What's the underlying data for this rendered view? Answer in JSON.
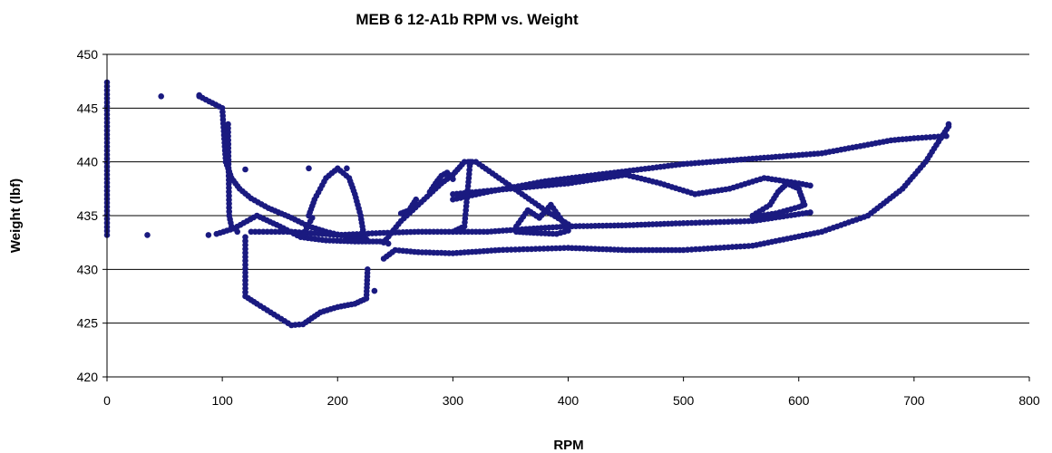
{
  "chart_data": {
    "type": "scatter",
    "title": "MEB 6 12-A1b RPM vs. Weight",
    "xlabel": "RPM",
    "ylabel": "Weight (lbf)",
    "xlim": [
      0,
      800
    ],
    "ylim": [
      420,
      450
    ],
    "xticks": [
      0,
      100,
      200,
      300,
      400,
      500,
      600,
      700,
      800
    ],
    "yticks": [
      420,
      425,
      430,
      435,
      440,
      445,
      450
    ],
    "grid": "horizontal",
    "legend": "none",
    "marker_color": "#1a1a80",
    "series": [
      {
        "paths": [
          [
            [
              0,
              433.2
            ],
            [
              0,
              447.4
            ]
          ],
          [
            [
              80,
              446.1
            ],
            [
              100,
              445.0
            ],
            [
              103,
              440.0
            ],
            [
              108,
              438.5
            ],
            [
              115,
              437.5
            ],
            [
              125,
              436.6
            ],
            [
              140,
              435.7
            ],
            [
              160,
              434.8
            ],
            [
              175,
              434.0
            ],
            [
              190,
              433.5
            ],
            [
              210,
              433.0
            ],
            [
              225,
              432.8
            ]
          ],
          [
            [
              105,
              443.5
            ],
            [
              106,
              435.0
            ],
            [
              108,
              434.0
            ]
          ],
          [
            [
              110,
              433.8
            ],
            [
              130,
              435.0
            ],
            [
              150,
              434.0
            ],
            [
              168,
              433.0
            ],
            [
              190,
              432.7
            ],
            [
              215,
              432.6
            ],
            [
              240,
              432.6
            ]
          ],
          [
            [
              95,
              433.3
            ],
            [
              110,
              433.8
            ]
          ],
          [
            [
              125,
              433.5
            ],
            [
              160,
              433.5
            ],
            [
              200,
              433.2
            ],
            [
              240,
              433.4
            ],
            [
              270,
              433.5
            ],
            [
              300,
              433.5
            ],
            [
              330,
              433.5
            ],
            [
              370,
              433.8
            ],
            [
              400,
              434.0
            ],
            [
              450,
              434.1
            ],
            [
              500,
              434.3
            ],
            [
              560,
              434.5
            ],
            [
              610,
              435.3
            ]
          ],
          [
            [
              120,
              433.0
            ],
            [
              120,
              427.5
            ],
            [
              130,
              426.8
            ],
            [
              145,
              425.8
            ],
            [
              160,
              424.8
            ],
            [
              170,
              424.9
            ],
            [
              185,
              426.0
            ],
            [
              200,
              426.5
            ],
            [
              215,
              426.8
            ],
            [
              225,
              427.3
            ],
            [
              226,
              430.0
            ]
          ],
          [
            [
              175,
              435.0
            ],
            [
              180,
              436.5
            ],
            [
              190,
              438.5
            ],
            [
              200,
              439.4
            ],
            [
              210,
              438.5
            ],
            [
              215,
              437.0
            ],
            [
              220,
              435.0
            ],
            [
              223,
              433.0
            ]
          ],
          [
            [
              170,
              433.2
            ],
            [
              178,
              434.8
            ]
          ],
          [
            [
              240,
              431.0
            ],
            [
              250,
              431.8
            ],
            [
              270,
              431.6
            ],
            [
              300,
              431.5
            ],
            [
              340,
              431.8
            ],
            [
              400,
              432.0
            ],
            [
              450,
              431.8
            ],
            [
              500,
              431.8
            ],
            [
              560,
              432.2
            ],
            [
              620,
              433.5
            ],
            [
              660,
              435.0
            ],
            [
              690,
              437.5
            ],
            [
              710,
              440.0
            ],
            [
              725,
              442.5
            ],
            [
              730,
              443.3
            ]
          ],
          [
            [
              240,
              432.5
            ],
            [
              255,
              434.5
            ],
            [
              275,
              436.5
            ],
            [
              290,
              438.0
            ],
            [
              300,
              438.8
            ],
            [
              310,
              440.0
            ],
            [
              320,
              440.0
            ],
            [
              340,
              438.5
            ],
            [
              360,
              437.0
            ],
            [
              380,
              435.5
            ],
            [
              400,
              434.2
            ]
          ],
          [
            [
              300,
              433.5
            ],
            [
              310,
              434.0
            ],
            [
              315,
              440.0
            ]
          ],
          [
            [
              300,
              437.0
            ],
            [
              350,
              437.5
            ],
            [
              400,
              438.0
            ],
            [
              450,
              438.8
            ],
            [
              480,
              438.0
            ],
            [
              510,
              437.0
            ],
            [
              540,
              437.5
            ],
            [
              570,
              438.5
            ],
            [
              600,
              438.0
            ],
            [
              610,
              437.8
            ]
          ],
          [
            [
              300,
              436.5
            ],
            [
              330,
              437.2
            ],
            [
              380,
              438.2
            ],
            [
              440,
              439.0
            ],
            [
              500,
              439.8
            ],
            [
              560,
              440.3
            ],
            [
              620,
              440.8
            ],
            [
              680,
              442.0
            ],
            [
              700,
              442.2
            ],
            [
              728,
              442.4
            ]
          ],
          [
            [
              560,
              435.0
            ],
            [
              575,
              436.0
            ],
            [
              582,
              437.2
            ],
            [
              590,
              438.0
            ],
            [
              600,
              437.5
            ],
            [
              605,
              436.0
            ],
            [
              600,
              435.8
            ],
            [
              580,
              435.2
            ],
            [
              560,
              434.9
            ]
          ],
          [
            [
              355,
              434.0
            ],
            [
              365,
              435.5
            ],
            [
              375,
              434.8
            ],
            [
              385,
              436.0
            ],
            [
              395,
              434.5
            ],
            [
              400,
              433.6
            ],
            [
              390,
              433.3
            ],
            [
              370,
              433.4
            ],
            [
              355,
              433.5
            ]
          ],
          [
            [
              280,
              437.2
            ],
            [
              285,
              438.0
            ],
            [
              290,
              438.7
            ],
            [
              295,
              439.0
            ],
            [
              300,
              438.4
            ]
          ],
          [
            [
              255,
              435.2
            ],
            [
              262,
              435.5
            ],
            [
              268,
              436.5
            ]
          ]
        ],
        "points": [
          [
            35,
            433.2
          ],
          [
            47,
            446.1
          ],
          [
            80,
            446.2
          ],
          [
            88,
            433.2
          ],
          [
            175,
            439.4
          ],
          [
            208,
            439.4
          ],
          [
            120,
            439.3
          ],
          [
            113,
            433.5
          ],
          [
            232,
            428.0
          ],
          [
            244,
            432.4
          ],
          [
            730,
            443.5
          ]
        ]
      }
    ]
  }
}
